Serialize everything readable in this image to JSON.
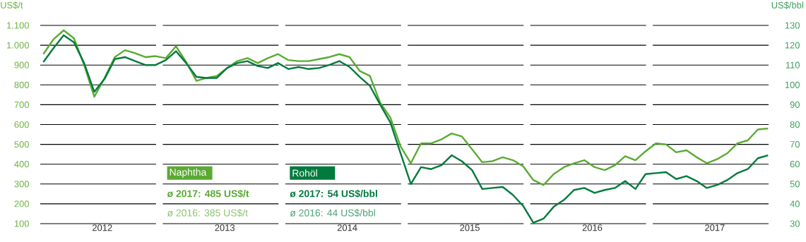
{
  "chart_data": {
    "type": "line",
    "ylabel": "US$/t",
    "y2label": "US$/bbl",
    "x": [
      2012.042,
      2012.125,
      2012.208,
      2012.292,
      2012.375,
      2012.458,
      2012.542,
      2012.625,
      2012.708,
      2012.792,
      2012.875,
      2012.958,
      2013.042,
      2013.125,
      2013.208,
      2013.292,
      2013.375,
      2013.458,
      2013.542,
      2013.625,
      2013.708,
      2013.792,
      2013.875,
      2013.958,
      2014.042,
      2014.125,
      2014.208,
      2014.292,
      2014.375,
      2014.458,
      2014.542,
      2014.625,
      2014.708,
      2014.792,
      2014.875,
      2014.958,
      2015.042,
      2015.125,
      2015.208,
      2015.292,
      2015.375,
      2015.458,
      2015.542,
      2015.625,
      2015.708,
      2015.792,
      2015.875,
      2015.958,
      2016.042,
      2016.125,
      2016.208,
      2016.292,
      2016.375,
      2016.458,
      2016.542,
      2016.625,
      2016.708,
      2016.792,
      2016.875,
      2016.958,
      2017.042,
      2017.125,
      2017.208,
      2017.292,
      2017.375,
      2017.458,
      2017.542,
      2017.625,
      2017.708,
      2017.792,
      2017.875,
      2017.958
    ],
    "series": [
      {
        "name": "Naphtha",
        "color": "#5aaa32",
        "values": [
          955,
          1030,
          1075,
          1035,
          900,
          740,
          835,
          940,
          975,
          960,
          940,
          945,
          935,
          995,
          915,
          820,
          835,
          845,
          885,
          920,
          935,
          910,
          935,
          955,
          925,
          920,
          920,
          930,
          940,
          955,
          940,
          870,
          845,
          710,
          635,
          490,
          405,
          505,
          505,
          525,
          555,
          540,
          475,
          410,
          415,
          435,
          420,
          390,
          320,
          295,
          350,
          385,
          405,
          420,
          385,
          370,
          395,
          440,
          420,
          465,
          505,
          500,
          460,
          470,
          435,
          405,
          425,
          455,
          505,
          520,
          575,
          580
        ]
      },
      {
        "name": "Rohöl",
        "color": "#007a3d",
        "axis": "y2",
        "values": [
          111.5,
          118.5,
          125,
          121.5,
          111,
          96.5,
          103,
          113,
          114,
          112,
          110,
          110,
          112.5,
          117,
          111,
          104,
          103.5,
          103.5,
          108.5,
          111,
          112,
          109.5,
          108.5,
          111,
          108,
          109,
          108,
          108.5,
          110,
          112,
          109,
          104,
          99.5,
          90,
          81,
          65.5,
          50,
          58.5,
          57.5,
          59.5,
          64.5,
          61.5,
          57,
          47.5,
          48,
          48.5,
          44.5,
          39,
          30.5,
          32.5,
          38.5,
          42,
          47,
          48,
          45.5,
          47,
          48,
          51.5,
          47.5,
          55,
          55.5,
          56,
          52.5,
          54,
          51.5,
          48,
          49.5,
          52,
          55.5,
          57.5,
          63,
          64.5
        ]
      }
    ],
    "xlim": [
      2012.017,
      2017.962
    ],
    "xticks": [
      {
        "value": 2012.5,
        "label": "2012"
      },
      {
        "value": 2013.5,
        "label": "2013"
      },
      {
        "value": 2014.5,
        "label": "2014"
      },
      {
        "value": 2015.5,
        "label": "2015"
      },
      {
        "value": 2016.5,
        "label": "2016"
      },
      {
        "value": 2017.5,
        "label": "2017"
      }
    ],
    "ylim": [
      100,
      1100
    ],
    "yticks": [
      100,
      200,
      300,
      400,
      500,
      600,
      700,
      800,
      900,
      {
        "value": 1000,
        "label": "1.000"
      },
      {
        "value": 1100,
        "label": "1.100"
      }
    ],
    "y2lim": [
      30,
      130
    ],
    "y2ticks": [
      30,
      40,
      50,
      60,
      70,
      80,
      90,
      100,
      110,
      120,
      130
    ],
    "grid": "y",
    "legend": "bottom left",
    "annotations": [
      "ø 2017: 485 US$/t",
      "ø 2016: 385 US$/t",
      "ø 2017: 54 US$/bbl",
      "ø 2016: 44 US$/bbl"
    ]
  }
}
